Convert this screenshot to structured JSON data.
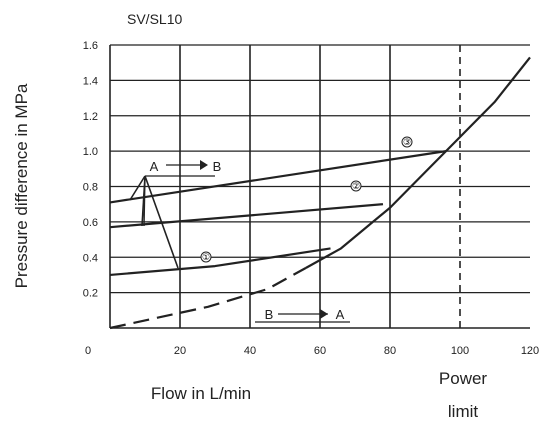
{
  "chart_data": {
    "type": "line",
    "title": "SV/SL10",
    "xlabel": "Flow in L/min",
    "ylabel": "Pressure difference in MPa",
    "xlim": [
      0,
      120
    ],
    "ylim": [
      0,
      1.6
    ],
    "x_ticks": [
      "0",
      "20",
      "40",
      "60",
      "80",
      "100",
      "120"
    ],
    "y_ticks": [
      "0.2",
      "0.4",
      "0.6",
      "0.8",
      "1.0",
      "1.2",
      "1.4",
      "1.6"
    ],
    "grid": true,
    "power_limit": {
      "x": 100,
      "label_line1": "Power",
      "label_line2": "limit"
    },
    "series": [
      {
        "name": "③",
        "values": [
          [
            0,
            0.71
          ],
          [
            96,
            1.0
          ]
        ]
      },
      {
        "name": "②",
        "values": [
          [
            0,
            0.57
          ],
          [
            78,
            0.7
          ]
        ]
      },
      {
        "name": "①",
        "values": [
          [
            0,
            0.3
          ],
          [
            30,
            0.35
          ],
          [
            63,
            0.45
          ]
        ]
      },
      {
        "name": "",
        "values": [
          [
            56,
            0.34
          ],
          [
            66,
            0.45
          ],
          [
            80,
            0.68
          ],
          [
            92,
            0.92
          ],
          [
            100,
            1.08
          ],
          [
            110,
            1.28
          ],
          [
            120,
            1.53
          ]
        ]
      },
      {
        "name": "",
        "style": "dashed",
        "values": [
          [
            0,
            0.0
          ],
          [
            28,
            0.12
          ],
          [
            45,
            0.22
          ],
          [
            56,
            0.34
          ]
        ]
      }
    ],
    "annotations": [
      {
        "text": "A",
        "x": 13,
        "y": 0.93
      },
      {
        "text": "B",
        "x": 28,
        "y": 0.93
      },
      {
        "text": "B",
        "x": 44,
        "y": 0.08
      },
      {
        "text": "A",
        "x": 65,
        "y": 0.08
      }
    ]
  }
}
